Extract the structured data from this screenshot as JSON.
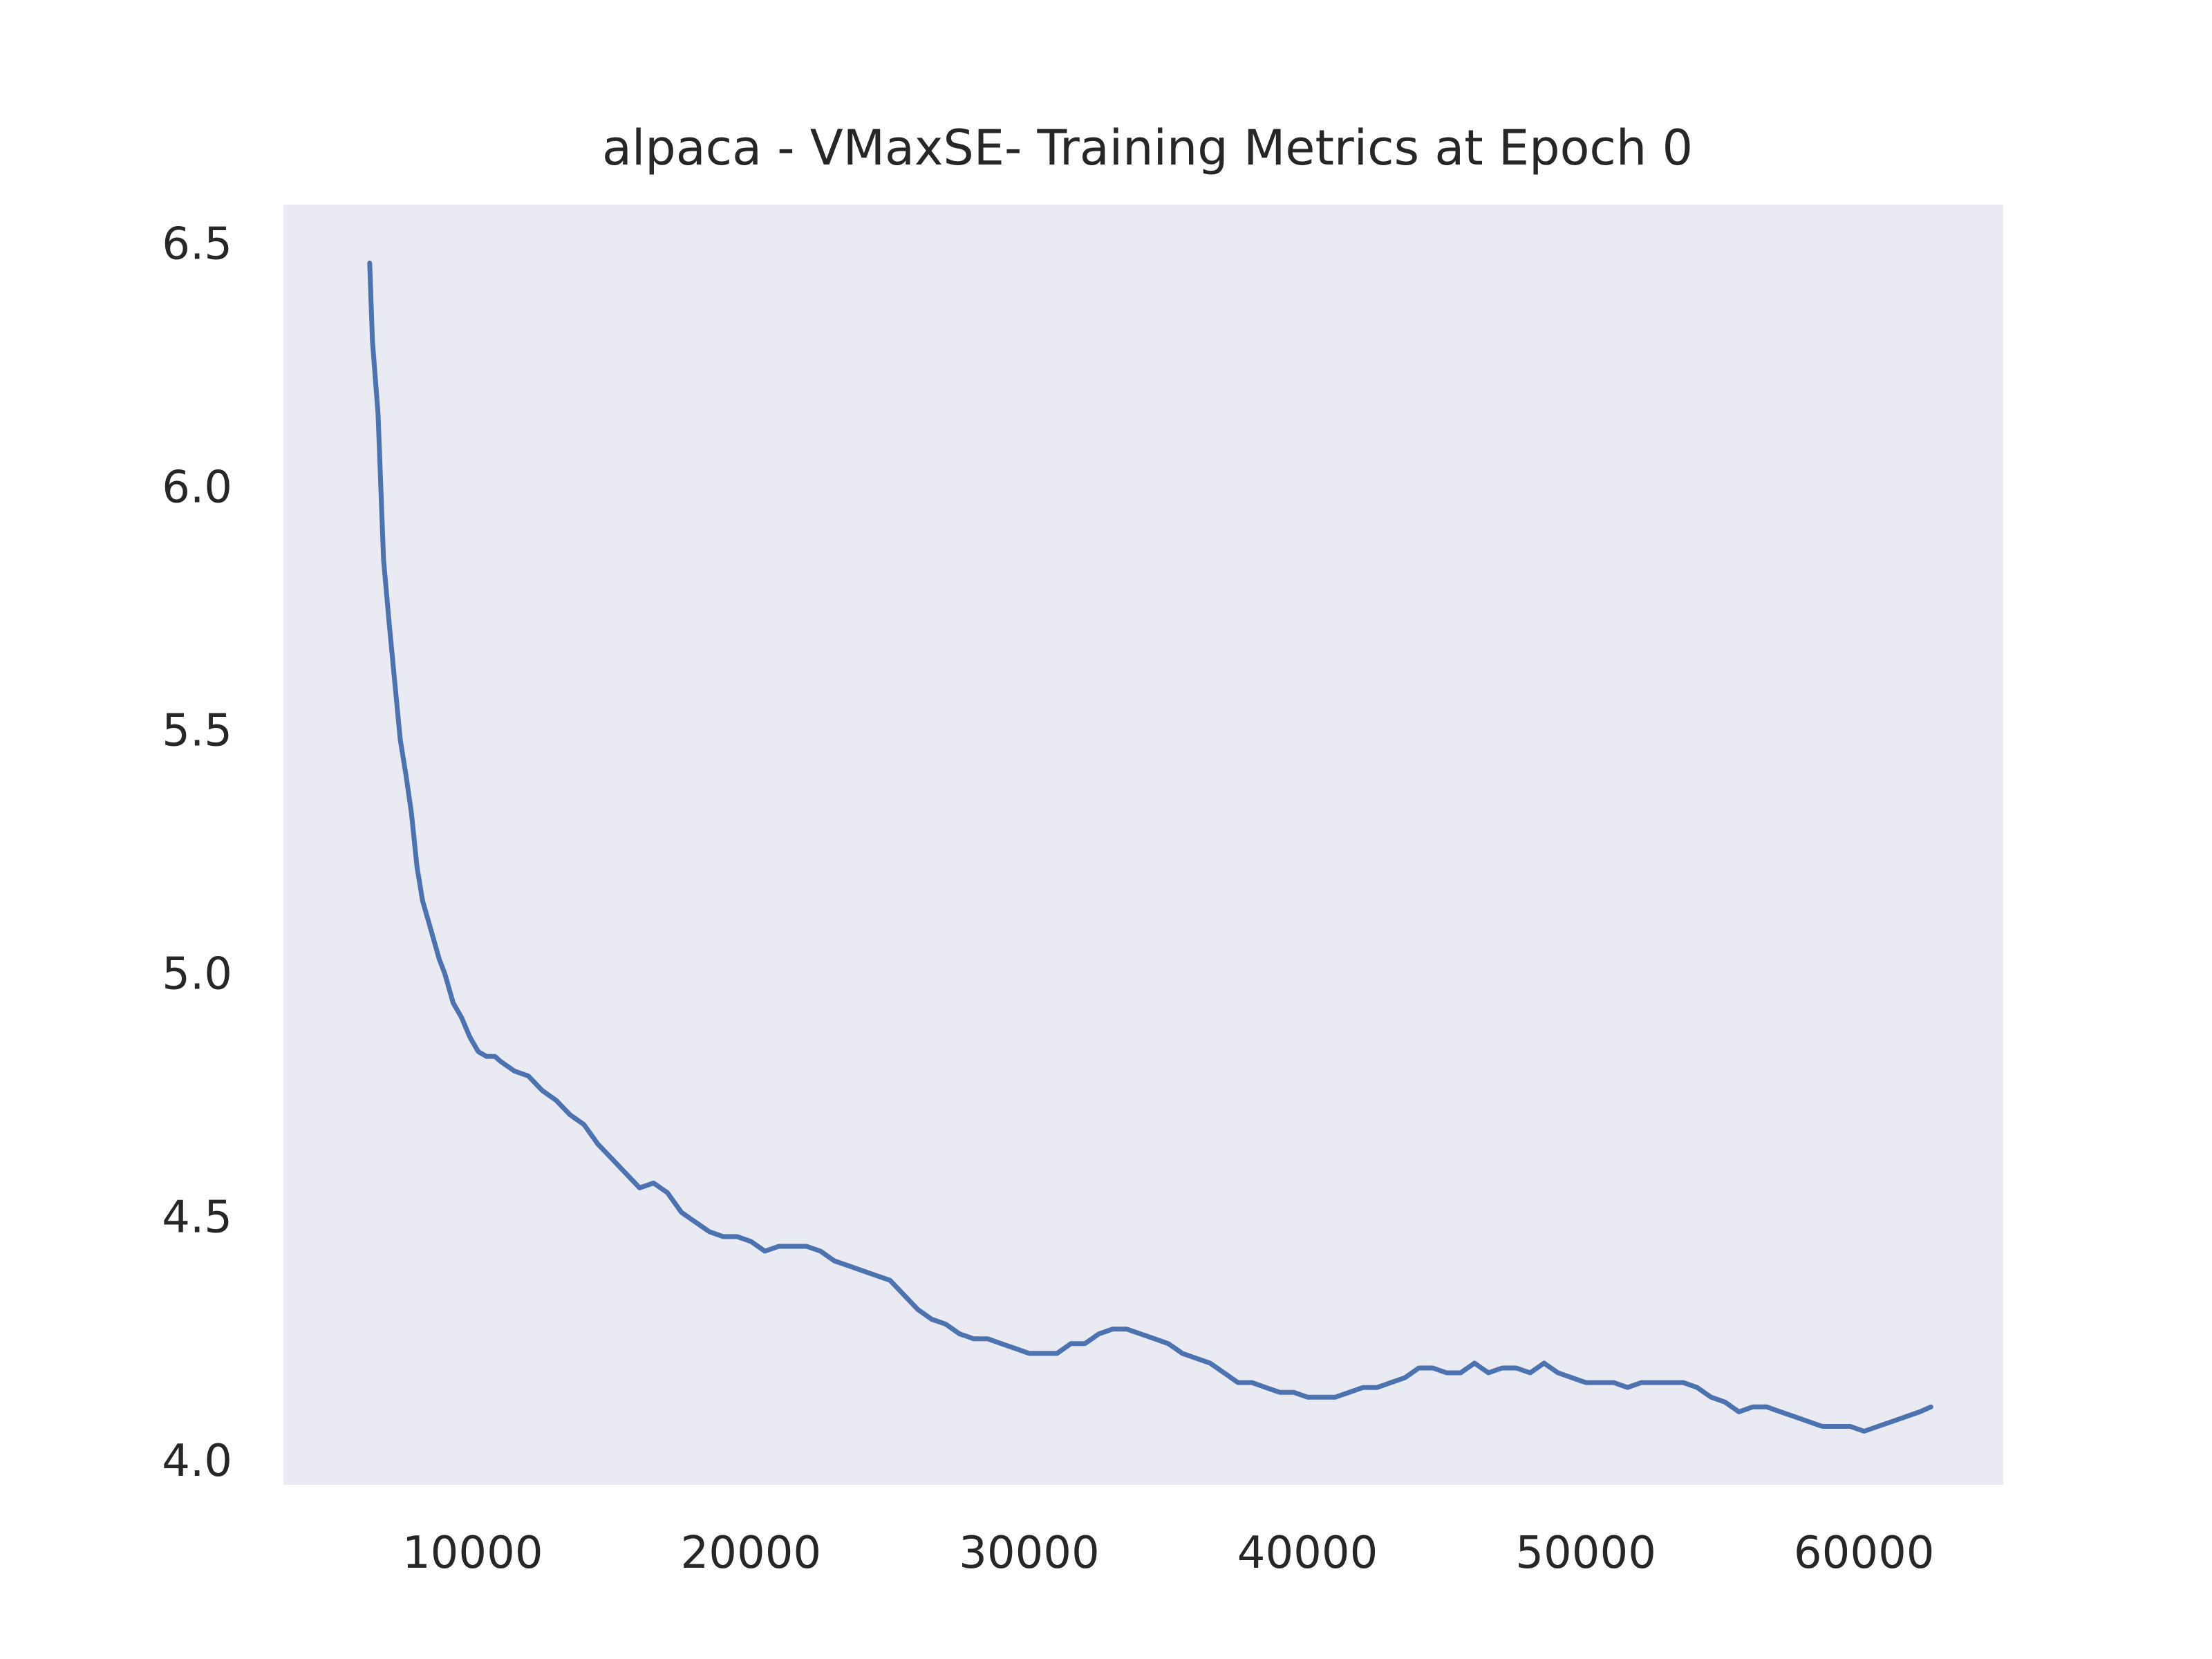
{
  "chart_data": {
    "type": "line",
    "title": "alpaca - VMaxSE- Training Metrics at Epoch 0",
    "xlabel": "",
    "ylabel": "",
    "xlim": [
      3200,
      65000
    ],
    "ylim": [
      3.95,
      6.58
    ],
    "xticks": [
      10000,
      20000,
      30000,
      40000,
      50000,
      60000
    ],
    "yticks": [
      4.0,
      4.5,
      5.0,
      5.5,
      6.0,
      6.5
    ],
    "xtick_labels": [
      "10000",
      "20000",
      "30000",
      "40000",
      "50000",
      "60000"
    ],
    "ytick_labels": [
      "4.0",
      "4.5",
      "5.0",
      "5.5",
      "6.0",
      "6.5"
    ],
    "grid": false,
    "background": "#eaeaf2",
    "line_color": "#4c72b0",
    "series": [
      {
        "x": [
          6300,
          6400,
          6600,
          6800,
          7000,
          7200,
          7400,
          7600,
          7800,
          8000,
          8200,
          8500,
          8800,
          9000,
          9300,
          9600,
          9900,
          10200,
          10500,
          10800,
          11000,
          11500,
          12000,
          12500,
          13000,
          13500,
          14000,
          14500,
          15000,
          15500,
          16000,
          16500,
          17000,
          17500,
          18000,
          18500,
          19000,
          19500,
          20000,
          20500,
          21000,
          21500,
          22000,
          22500,
          23000,
          23500,
          24000,
          24500,
          25000,
          25500,
          26000,
          26500,
          27000,
          27500,
          28000,
          28500,
          29000,
          29500,
          30000,
          30500,
          31000,
          31500,
          32000,
          32500,
          33000,
          33500,
          34000,
          34500,
          35000,
          35500,
          36000,
          36500,
          37000,
          37500,
          38000,
          38500,
          39000,
          39500,
          40000,
          40500,
          41000,
          41500,
          42000,
          42500,
          43000,
          43500,
          44000,
          44500,
          45000,
          45500,
          46000,
          46500,
          47000,
          47500,
          48000,
          48500,
          49000,
          49500,
          50000,
          50500,
          51000,
          51500,
          52000,
          52500,
          53000,
          53500,
          54000,
          54500,
          55000,
          55500,
          56000,
          56500,
          57000,
          57500,
          58000,
          58500,
          59000,
          59500,
          60000,
          60500,
          61000,
          61500,
          62000,
          62400
        ],
        "y": [
          6.46,
          6.3,
          6.15,
          5.85,
          5.72,
          5.6,
          5.48,
          5.41,
          5.33,
          5.22,
          5.15,
          5.09,
          5.03,
          5.0,
          4.94,
          4.91,
          4.87,
          4.84,
          4.83,
          4.83,
          4.82,
          4.8,
          4.79,
          4.76,
          4.74,
          4.71,
          4.69,
          4.65,
          4.62,
          4.59,
          4.56,
          4.57,
          4.55,
          4.51,
          4.49,
          4.47,
          4.46,
          4.46,
          4.45,
          4.43,
          4.44,
          4.44,
          4.44,
          4.43,
          4.41,
          4.4,
          4.39,
          4.38,
          4.37,
          4.34,
          4.31,
          4.29,
          4.28,
          4.26,
          4.25,
          4.25,
          4.24,
          4.23,
          4.22,
          4.22,
          4.22,
          4.24,
          4.24,
          4.26,
          4.27,
          4.27,
          4.26,
          4.25,
          4.24,
          4.22,
          4.21,
          4.2,
          4.18,
          4.16,
          4.16,
          4.15,
          4.14,
          4.14,
          4.13,
          4.13,
          4.13,
          4.14,
          4.15,
          4.15,
          4.16,
          4.17,
          4.19,
          4.19,
          4.18,
          4.18,
          4.2,
          4.18,
          4.19,
          4.19,
          4.18,
          4.2,
          4.18,
          4.17,
          4.16,
          4.16,
          4.16,
          4.15,
          4.16,
          4.16,
          4.16,
          4.16,
          4.15,
          4.13,
          4.12,
          4.1,
          4.11,
          4.11,
          4.1,
          4.09,
          4.08,
          4.07,
          4.07,
          4.07,
          4.06,
          4.07,
          4.08,
          4.09,
          4.1,
          4.11
        ]
      }
    ]
  }
}
